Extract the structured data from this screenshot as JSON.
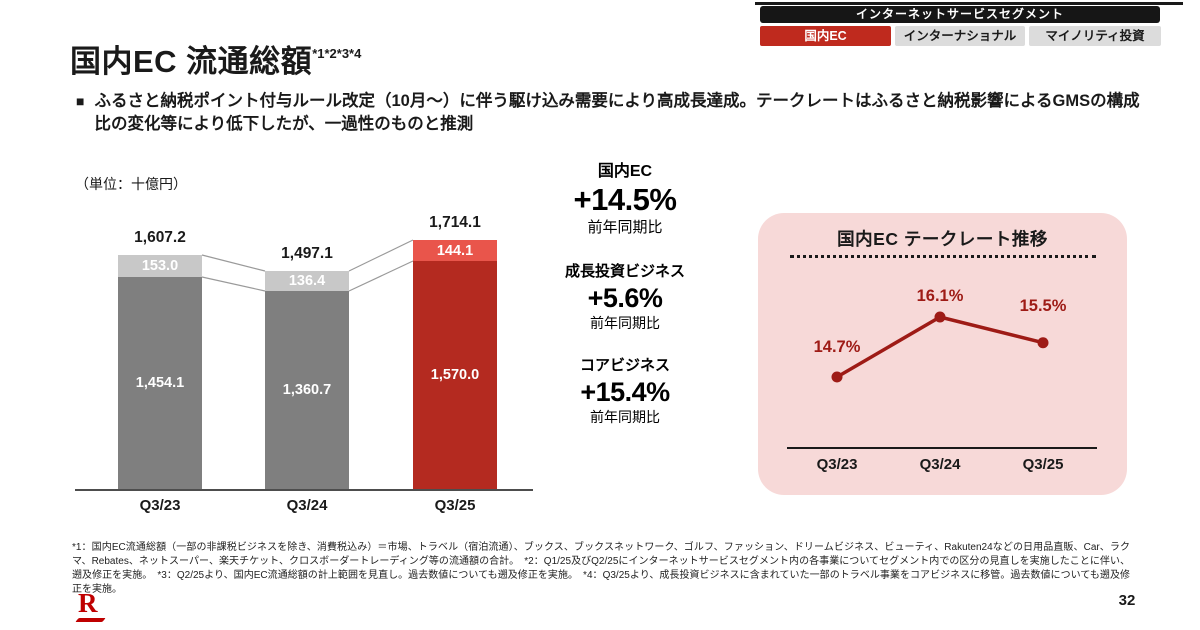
{
  "header": {
    "segment_label": "インターネットサービスセグメント",
    "tabs": [
      {
        "label": "国内EC",
        "active": true
      },
      {
        "label": "インターナショナル",
        "active": false
      },
      {
        "label": "マイノリティ投資",
        "active": false
      }
    ]
  },
  "title": {
    "text": "国内EC 流通総額",
    "superscript": "*1*2*3*4"
  },
  "summary": "ふるさと納税ポイント付与ルール改定（10月～）に伴う駆け込み需要により高成長達成。テークレートはふるさと納税影響によるGMSの構成比の変化等により低下したが、一過性のものと推測",
  "chart_data": [
    {
      "type": "bar",
      "stacked": true,
      "unit_label": "（単位：十億円）",
      "categories": [
        "Q3/23",
        "Q3/24",
        "Q3/25"
      ],
      "series": [
        {
          "name": "コアビジネス",
          "values": [
            1454.1,
            1360.7,
            1570.0
          ],
          "labels": [
            "1,454.1",
            "1,360.7",
            "1,570.0"
          ],
          "color": "#7f7f7f",
          "color_highlight": "#b42a20"
        },
        {
          "name": "成長投資ビジネス",
          "values": [
            153.0,
            136.4,
            144.1
          ],
          "labels": [
            "153.0",
            "136.4",
            "144.1"
          ],
          "color": "#c8c8c8",
          "color_highlight": "#e9554b"
        }
      ],
      "totals": [
        1607.2,
        1497.1,
        1714.1
      ],
      "totals_labels": [
        "1,607.2",
        "1,497.1",
        "1,714.1"
      ],
      "highlight_index": 2,
      "ylim": [
        0,
        1800
      ],
      "grid": false
    },
    {
      "type": "line",
      "title": "国内EC テークレート推移",
      "categories": [
        "Q3/23",
        "Q3/24",
        "Q3/25"
      ],
      "values": [
        14.7,
        16.1,
        15.5
      ],
      "labels": [
        "14.7%",
        "16.1%",
        "15.5%"
      ],
      "line_color": "#9e1b16",
      "panel_color": "#f7d9d8"
    }
  ],
  "metrics": [
    {
      "label": "国内EC",
      "value": "+14.5%",
      "sub": "前年同期比",
      "color": "#1a1a1a"
    },
    {
      "label": "成長投資ビジネス",
      "value": "+5.6%",
      "sub": "前年同期比",
      "color": "#e63a2d"
    },
    {
      "label": "コアビジネス",
      "value": "+15.4%",
      "sub": "前年同期比",
      "color": "#c92e22"
    }
  ],
  "footnotes": "*1：国内EC流通総額（一部の非課税ビジネスを除き、消費税込み）＝市場、トラベル（宿泊流通）、ブックス、ブックスネットワーク、ゴルフ、ファッション、ドリームビジネス、ビューティ、Rakuten24などの日用品直販、Car、ラクマ、Rebates、ネットスーパー、楽天チケット、クロスボーダートレーディング等の流通額の合計。　*2：Q1/25及びQ2/25にインターネットサービスセグメント内の各事業についてセグメント内での区分の見直しを実施したことに伴い、遡及修正を実施。　*3：Q2/25より、国内EC流通総額の計上範囲を見直し。過去数値についても遡及修正を実施。　*4：Q3/25より、成長投資ビジネスに含まれていた一部のトラベル事業をコアビジネスに移管。過去数値についても遡及修正を実施。",
  "logo": {
    "letter": "R"
  },
  "page_number": "32",
  "colors": {
    "accent_red": "#bf2a1e",
    "bar_gray_dark": "#7f7f7f",
    "bar_gray_light": "#c8c8c8",
    "bar_red_dark": "#b42a20",
    "bar_red_light": "#e9554b",
    "line_red": "#9e1b16",
    "panel_pink": "#f7d9d8"
  }
}
